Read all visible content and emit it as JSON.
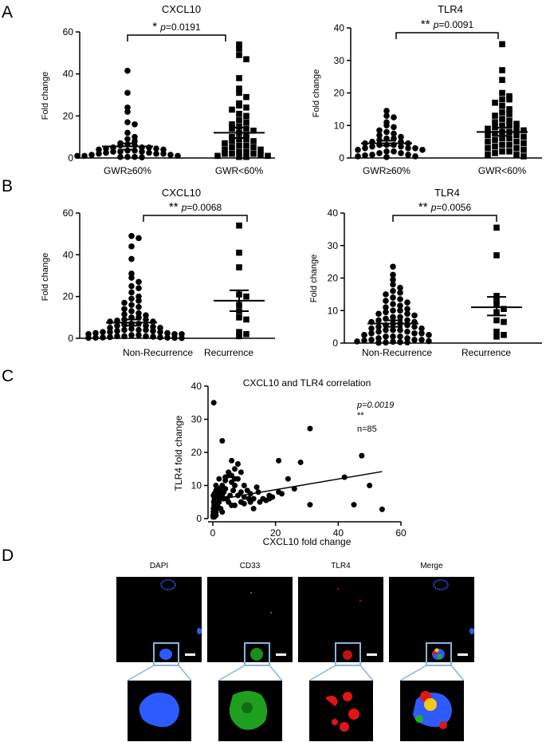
{
  "panel_letters": [
    "A",
    "B",
    "C",
    "D"
  ],
  "chart_data": [
    {
      "id": "A1",
      "type": "scatter",
      "title": "CXCL10",
      "xlabel": "",
      "ylabel": "Fold change",
      "ylim": [
        0,
        60
      ],
      "yticks": [
        0,
        20,
        40,
        60
      ],
      "categories": [
        "GWR≥60%",
        "GWR<60%"
      ],
      "markers": [
        "circle",
        "square"
      ],
      "significance": {
        "stars": "*",
        "p_label": "p",
        "p_value": "=0.0191"
      },
      "groups": [
        {
          "name": "GWR≥60%",
          "mean": 5.5,
          "sem_low": 4.0,
          "sem_high": 7.0,
          "values": [
            41.5,
            31,
            24,
            22,
            17,
            16,
            12,
            10,
            9,
            8,
            7,
            6.5,
            6,
            6,
            5,
            5,
            5,
            4.5,
            4.5,
            4,
            4,
            3.5,
            3.5,
            3,
            3,
            3,
            2.5,
            2.5,
            2,
            2,
            2,
            1.5,
            1.5,
            1,
            1,
            1,
            0.5,
            0.5,
            0.5,
            0.3
          ]
        },
        {
          "name": "GWR<60%",
          "mean": 12,
          "sem_low": 9.5,
          "sem_high": 14.5,
          "values": [
            54,
            52,
            49,
            47,
            38,
            33,
            31,
            29,
            26,
            25,
            24,
            23,
            21,
            20,
            18,
            17,
            16,
            15,
            14,
            14,
            13,
            12,
            11,
            10,
            9,
            9,
            8,
            8,
            7,
            6,
            6,
            5,
            5,
            4,
            4,
            3,
            3,
            2,
            2,
            2,
            1.5,
            1,
            1,
            0.5,
            0.5
          ]
        }
      ]
    },
    {
      "id": "A2",
      "type": "scatter",
      "title": "TLR4",
      "xlabel": "",
      "ylabel": "Fold change",
      "ylim": [
        0,
        40
      ],
      "yticks": [
        0,
        10,
        20,
        30,
        40
      ],
      "categories": [
        "GWR≥60%",
        "GWR<60%"
      ],
      "markers": [
        "circle",
        "square"
      ],
      "significance": {
        "stars": "**",
        "p_label": "p",
        "p_value": "=0.0091"
      },
      "groups": [
        {
          "name": "GWR≥60%",
          "mean": 4.5,
          "sem_low": 3.8,
          "sem_high": 5.3,
          "values": [
            14.5,
            13,
            12.5,
            11,
            10,
            9.5,
            8.5,
            8,
            7.5,
            7,
            6.5,
            6,
            6,
            5.5,
            5,
            5,
            4.5,
            4.5,
            4,
            4,
            4,
            3.5,
            3.5,
            3,
            3,
            3,
            2.5,
            2.5,
            2,
            2,
            1.5,
            1.5,
            1,
            1,
            0.8,
            0.5,
            0.5,
            0.3
          ]
        },
        {
          "name": "GWR<60%",
          "mean": 8,
          "sem_low": 6.8,
          "sem_high": 9.3,
          "values": [
            35,
            27,
            24,
            20,
            19,
            18,
            18,
            17,
            16,
            15,
            14,
            13.5,
            13,
            12,
            11.5,
            11,
            10.5,
            10,
            10,
            9.5,
            9,
            9,
            8.5,
            8,
            8,
            7.5,
            7,
            7,
            6.5,
            6,
            6,
            5.5,
            5,
            5,
            4.5,
            4,
            4,
            3.5,
            3,
            3,
            2.5,
            2,
            2,
            1.5,
            1,
            1,
            0.5
          ]
        }
      ]
    },
    {
      "id": "B1",
      "type": "scatter",
      "title": "CXCL10",
      "xlabel": "",
      "ylabel": "Fold change",
      "ylim": [
        0,
        60
      ],
      "yticks": [
        0,
        20,
        40,
        60
      ],
      "categories": [
        "Non-Recurrence",
        "Recurrence"
      ],
      "markers": [
        "circle",
        "square"
      ],
      "significance": {
        "stars": "**",
        "p_label": "p",
        "p_value": "=0.0068"
      },
      "groups": [
        {
          "name": "Non-Recurrence",
          "mean": 7.5,
          "sem_low": 6.0,
          "sem_high": 9.0,
          "values": [
            49,
            48,
            44,
            38,
            31,
            29,
            27,
            25,
            24,
            22,
            20,
            19,
            18,
            17,
            16,
            15,
            14,
            13,
            12,
            11.5,
            11,
            10,
            10,
            9,
            9,
            8.5,
            8,
            8,
            7,
            7,
            6.5,
            6,
            6,
            5.5,
            5,
            5,
            4.5,
            4,
            4,
            4,
            3.5,
            3.5,
            3,
            3,
            3,
            2.5,
            2.5,
            2,
            2,
            2,
            1.5,
            1.5,
            1,
            1,
            1,
            0.8,
            0.6,
            0.5,
            0.4,
            0.3,
            0.3,
            0.2,
            0.2,
            0.1
          ]
        },
        {
          "name": "Recurrence",
          "mean": 18,
          "sem_low": 13,
          "sem_high": 23,
          "values": [
            54,
            41,
            34,
            21,
            20,
            16,
            13,
            10,
            9,
            3,
            2,
            1
          ]
        }
      ]
    },
    {
      "id": "B2",
      "type": "scatter",
      "title": "TLR4",
      "xlabel": "",
      "ylabel": "Fold change",
      "ylim": [
        0,
        40
      ],
      "yticks": [
        0,
        10,
        20,
        30,
        40
      ],
      "categories": [
        "Non-Recurrence",
        "Recurrence"
      ],
      "markers": [
        "circle",
        "square"
      ],
      "significance": {
        "stars": "**",
        "p_label": "p",
        "p_value": "=0.0056"
      },
      "groups": [
        {
          "name": "Non-Recurrence",
          "mean": 6,
          "sem_low": 5.0,
          "sem_high": 7.0,
          "values": [
            23.5,
            21,
            19.5,
            18,
            17,
            16,
            15.5,
            15,
            14,
            13.5,
            13,
            12.5,
            12,
            11.5,
            11,
            10.5,
            10,
            10,
            9.5,
            9,
            9,
            8.5,
            8,
            8,
            7.5,
            7,
            7,
            6.5,
            6.5,
            6,
            6,
            5.5,
            5.5,
            5,
            5,
            4.5,
            4.5,
            4,
            4,
            4,
            3.5,
            3.5,
            3,
            3,
            3,
            2.5,
            2.5,
            2,
            2,
            2,
            1.5,
            1.5,
            1,
            1,
            1,
            0.8,
            0.6,
            0.5,
            0.4,
            0.3,
            0.2,
            0.2,
            0.1
          ]
        },
        {
          "name": "Recurrence",
          "mean": 11,
          "sem_low": 8.5,
          "sem_high": 14.2,
          "values": [
            35.5,
            27,
            14.5,
            13,
            12,
            10.5,
            9.5,
            7,
            6.5,
            3.5,
            2.5,
            2
          ]
        }
      ]
    },
    {
      "id": "C",
      "type": "scatter",
      "title": "CXCL10 and TLR4 correlation",
      "xlabel": "CXCL10 fold change",
      "ylabel": "TLR4  fold change",
      "xlim": [
        0,
        60
      ],
      "ylim": [
        0,
        40
      ],
      "xticks": [
        0,
        20,
        40,
        60
      ],
      "yticks": [
        0,
        10,
        20,
        30,
        40
      ],
      "annotation": {
        "p_text": "p=0.0019",
        "stars": "**",
        "n_text": "n=85"
      },
      "trend": {
        "x": [
          0,
          54
        ],
        "y": [
          5.5,
          14.2
        ]
      },
      "points": [
        [
          0.3,
          35
        ],
        [
          3,
          23.5
        ],
        [
          31,
          27.2
        ],
        [
          47.5,
          19
        ],
        [
          42,
          12.5
        ],
        [
          50,
          10
        ],
        [
          45,
          4.2
        ],
        [
          54,
          2.8
        ],
        [
          31,
          4.2
        ],
        [
          21,
          17.5
        ],
        [
          28,
          17
        ],
        [
          24,
          12
        ],
        [
          26,
          9
        ],
        [
          21,
          8
        ],
        [
          18,
          6
        ],
        [
          19,
          6.5
        ],
        [
          15,
          5
        ],
        [
          13,
          3
        ],
        [
          17,
          5.5
        ],
        [
          14.5,
          8
        ],
        [
          12,
          5
        ],
        [
          10,
          6.5
        ],
        [
          9,
          8
        ],
        [
          7,
          10
        ],
        [
          8,
          12
        ],
        [
          5,
          14
        ],
        [
          7,
          15
        ],
        [
          8,
          16.5
        ],
        [
          6,
          17.5
        ],
        [
          5,
          13
        ],
        [
          6,
          11
        ],
        [
          4,
          11.5
        ],
        [
          3,
          10
        ],
        [
          4,
          9
        ],
        [
          3,
          7
        ],
        [
          2,
          8
        ],
        [
          2,
          6
        ],
        [
          2,
          5
        ],
        [
          1.5,
          4
        ],
        [
          1,
          3
        ],
        [
          1,
          2
        ],
        [
          1,
          1
        ],
        [
          0.5,
          0.5
        ],
        [
          0.5,
          6
        ],
        [
          0.3,
          5
        ],
        [
          0.2,
          3
        ],
        [
          0.2,
          2
        ],
        [
          0.1,
          1
        ],
        [
          0.1,
          0.5
        ],
        [
          0.5,
          7.5
        ],
        [
          1,
          8.5
        ],
        [
          1.5,
          6.5
        ],
        [
          2.5,
          3
        ],
        [
          3,
          2
        ],
        [
          3.5,
          6
        ],
        [
          4.5,
          6
        ],
        [
          5,
          5
        ],
        [
          6,
          4
        ],
        [
          7,
          4
        ],
        [
          8,
          7
        ],
        [
          9,
          5
        ],
        [
          10,
          4.5
        ],
        [
          11,
          8.5
        ],
        [
          12,
          7.5
        ],
        [
          13,
          6
        ],
        [
          16,
          6
        ],
        [
          18,
          7
        ],
        [
          22,
          7.5
        ],
        [
          14,
          9.5
        ],
        [
          9,
          14
        ],
        [
          6,
          13
        ],
        [
          4,
          12.5
        ],
        [
          7,
          12
        ],
        [
          2,
          12
        ],
        [
          1,
          10
        ],
        [
          0.2,
          7
        ],
        [
          0.4,
          4
        ],
        [
          0.6,
          2.5
        ],
        [
          1.2,
          4.5
        ],
        [
          2.2,
          9
        ],
        [
          3.5,
          8
        ],
        [
          5.5,
          7
        ],
        [
          6.5,
          8.5
        ],
        [
          10,
          10
        ],
        [
          11.5,
          6
        ]
      ]
    }
  ],
  "panel_d": {
    "channels": [
      {
        "label": "DAPI",
        "color": "#2e5bff"
      },
      {
        "label": "CD33",
        "color": "#21b021"
      },
      {
        "label": "TLR4",
        "color": "#e11515"
      },
      {
        "label": "Merge",
        "color": "#ffffff"
      }
    ],
    "box_color": "#87b6d9"
  }
}
